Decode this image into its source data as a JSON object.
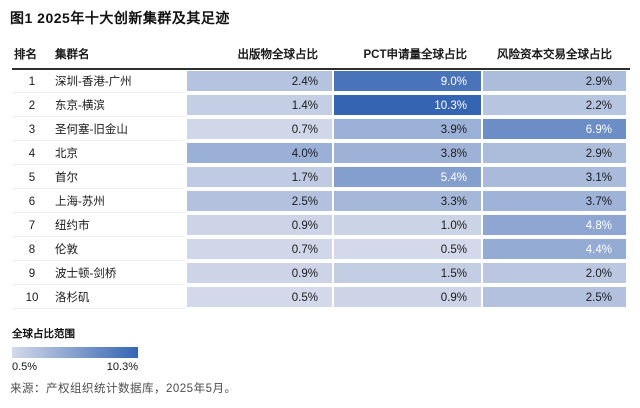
{
  "title": "图1 2025年十大创新集群及其足迹",
  "table": {
    "columns": [
      {
        "key": "rank",
        "label": "排名"
      },
      {
        "key": "name",
        "label": "集群名"
      },
      {
        "key": "pub",
        "label": "出版物全球占比"
      },
      {
        "key": "pct",
        "label": "PCT申请量全球占比"
      },
      {
        "key": "vc",
        "label": "风险资本交易全球占比"
      }
    ],
    "rows": [
      {
        "rank": "1",
        "name": "深圳-香港-广州",
        "pub": "2.4%",
        "pct": "9.0%",
        "vc": "2.9%"
      },
      {
        "rank": "2",
        "name": "东京-横滨",
        "pub": "1.4%",
        "pct": "10.3%",
        "vc": "2.2%"
      },
      {
        "rank": "3",
        "name": "圣何塞-旧金山",
        "pub": "0.7%",
        "pct": "3.9%",
        "vc": "6.9%"
      },
      {
        "rank": "4",
        "name": "北京",
        "pub": "4.0%",
        "pct": "3.8%",
        "vc": "2.9%"
      },
      {
        "rank": "5",
        "name": "首尔",
        "pub": "1.7%",
        "pct": "5.4%",
        "vc": "3.1%"
      },
      {
        "rank": "6",
        "name": "上海-苏州",
        "pub": "2.5%",
        "pct": "3.3%",
        "vc": "3.7%"
      },
      {
        "rank": "7",
        "name": "纽约市",
        "pub": "0.9%",
        "pct": "1.0%",
        "vc": "4.8%"
      },
      {
        "rank": "8",
        "name": "伦敦",
        "pub": "0.7%",
        "pct": "0.5%",
        "vc": "4.4%"
      },
      {
        "rank": "9",
        "name": "波士顿-剑桥",
        "pub": "0.9%",
        "pct": "1.5%",
        "vc": "2.0%"
      },
      {
        "rank": "10",
        "name": "洛杉矶",
        "pub": "0.5%",
        "pct": "0.9%",
        "vc": "2.5%"
      }
    ]
  },
  "heatmap": {
    "min_value": 0.5,
    "max_value": 10.3,
    "min_color": "#d3d9ea",
    "max_color": "#3565b2",
    "white_text_threshold": 4.2
  },
  "legend": {
    "title": "全球占比范围",
    "min_label": "0.5%",
    "max_label": "10.3%"
  },
  "source": "来源：产权组织统计数据库，2025年5月。"
}
